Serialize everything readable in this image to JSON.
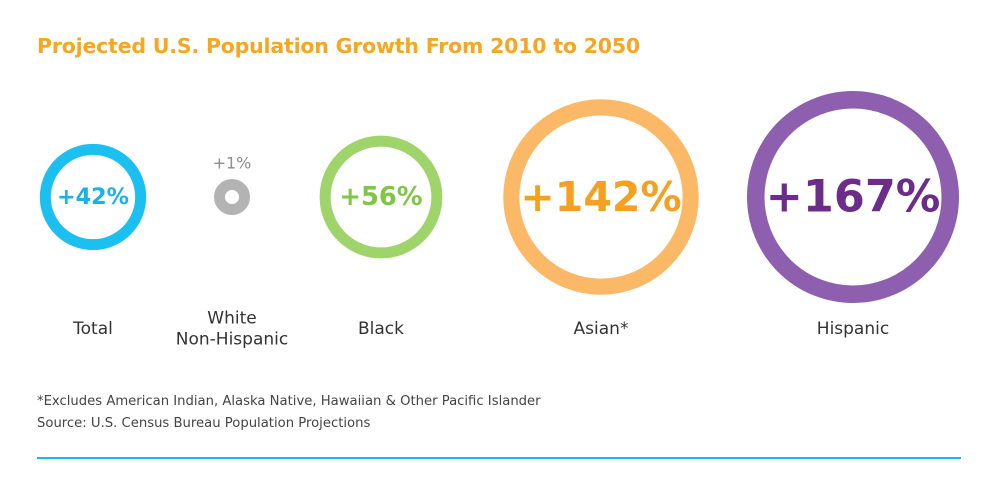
{
  "title": "Projected U.S. Population Growth From 2010 to 2050",
  "colors": {
    "title": "#f5a623",
    "label": "#333333",
    "rule": "#1fb6f0"
  },
  "chart_data": {
    "type": "bubble",
    "title": "Projected U.S. Population Growth From 2010 to 2050",
    "unit": "percent change, 2010 to 2050",
    "categories": [
      "Total",
      "White Non-Hispanic",
      "Black",
      "Asian*",
      "Hispanic"
    ],
    "values": [
      42,
      1,
      56,
      142,
      167
    ],
    "value_labels": [
      "+42%",
      "+1%",
      "+56%",
      "+142%",
      "+167%"
    ],
    "category_label_lines": [
      [
        "Total"
      ],
      [
        "White",
        "Non-Hispanic"
      ],
      [
        "Black"
      ],
      [
        "Asian*"
      ],
      [
        "Hispanic"
      ]
    ],
    "colors": [
      "#1bc0f0",
      "#b3b3b3",
      "#9fd46a",
      "#fbb967",
      "#8e5fae"
    ],
    "value_text_colors": [
      "#1bb0ea",
      "#8e8e8e",
      "#7fc646",
      "#f5a020",
      "#6b2c8a"
    ],
    "xlabel": "",
    "ylabel": ""
  },
  "footnotes": [
    "*Excludes American Indian, Alaska Native, Hawaiian & Other Pacific Islander",
    "Source: U.S. Census Bureau Population Projections"
  ]
}
